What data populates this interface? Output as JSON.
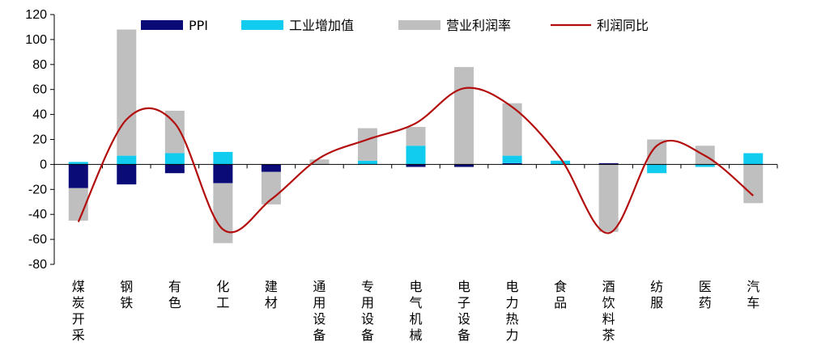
{
  "chart_data": {
    "type": "bar",
    "stacking": "stacked",
    "categories": [
      "煤炭开采",
      "钢铁",
      "有色",
      "化工",
      "建材",
      "通用设备",
      "专用设备",
      "电气机械",
      "电子设备",
      "电力热力",
      "食品",
      "酒饮料茶",
      "纺服",
      "医药",
      "汽车"
    ],
    "ylim": [
      -80,
      120
    ],
    "yticks": [
      -80,
      -60,
      -40,
      -20,
      0,
      20,
      40,
      60,
      80,
      100,
      120
    ],
    "grid": false,
    "legend_position": "top",
    "series": [
      {
        "name": "PPI",
        "type": "bar",
        "color": "#0b0b78",
        "values": [
          -19,
          -16,
          -7,
          -15,
          -6,
          0,
          0,
          -2,
          -2,
          1,
          0,
          1,
          0,
          0,
          0
        ]
      },
      {
        "name": "工业增加值",
        "type": "bar",
        "color": "#12ccf0",
        "values": [
          2,
          7,
          9,
          10,
          0,
          0,
          3,
          15,
          0,
          6,
          3,
          0,
          -7,
          -2,
          9
        ]
      },
      {
        "name": "营业利润率",
        "type": "bar",
        "color": "#bfbfbf",
        "values": [
          -26,
          101,
          34,
          -48,
          -26,
          4,
          26,
          15,
          78,
          42,
          0,
          -54,
          20,
          15,
          -31
        ]
      },
      {
        "name": "利润同比",
        "type": "line",
        "color": "#b30d0d",
        "values": [
          -46,
          36,
          33,
          -52,
          -28,
          5,
          20,
          33,
          61,
          46,
          5,
          -55,
          15,
          7,
          -25
        ]
      }
    ]
  }
}
